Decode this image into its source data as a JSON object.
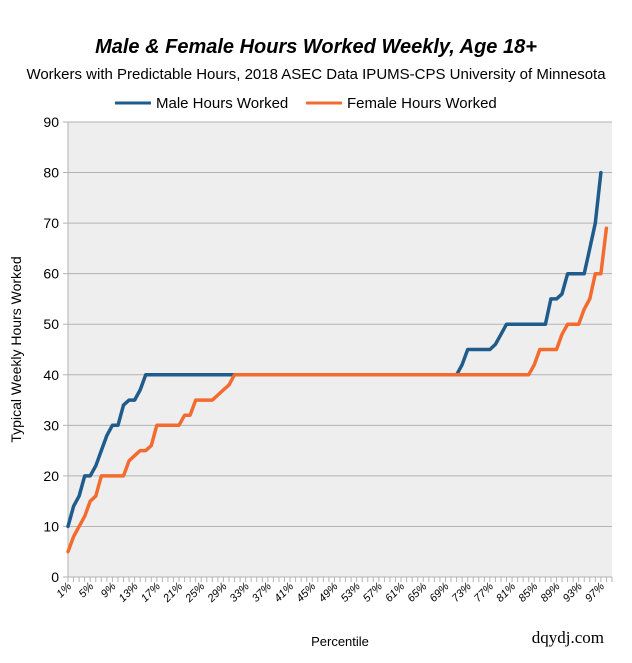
{
  "chart_data": {
    "type": "line",
    "title": "Male & Female Hours Worked Weekly, Age 18+",
    "subtitle": "Workers with Predictable Hours, 2018 ASEC Data IPUMS-CPS University of Minnesota",
    "xlabel": "Percentile",
    "ylabel": "Typical Weekly Hours Worked",
    "ylim": [
      0,
      90
    ],
    "yticks": [
      0,
      10,
      20,
      30,
      40,
      50,
      60,
      70,
      80,
      90
    ],
    "x_tick_labels": [
      "1%",
      "5%",
      "9%",
      "13%",
      "17%",
      "21%",
      "25%",
      "29%",
      "33%",
      "37%",
      "41%",
      "45%",
      "49%",
      "53%",
      "57%",
      "61%",
      "65%",
      "69%",
      "73%",
      "77%",
      "81%",
      "85%",
      "89%",
      "93%",
      "97%"
    ],
    "xlim": [
      1,
      99
    ],
    "grid": true,
    "legend_position": "top",
    "series": [
      {
        "name": "Male Hours Worked",
        "color": "#1f5c8b",
        "points": [
          [
            1,
            10
          ],
          [
            2,
            14
          ],
          [
            3,
            16
          ],
          [
            4,
            20
          ],
          [
            5,
            20
          ],
          [
            6,
            22
          ],
          [
            7,
            25
          ],
          [
            8,
            28
          ],
          [
            9,
            30
          ],
          [
            10,
            30
          ],
          [
            11,
            34
          ],
          [
            12,
            35
          ],
          [
            13,
            35
          ],
          [
            14,
            37
          ],
          [
            15,
            40
          ],
          [
            16,
            40
          ],
          [
            20,
            40
          ],
          [
            30,
            40
          ],
          [
            40,
            40
          ],
          [
            50,
            40
          ],
          [
            60,
            40
          ],
          [
            71,
            40
          ],
          [
            72,
            42
          ],
          [
            73,
            45
          ],
          [
            74,
            45
          ],
          [
            76,
            45
          ],
          [
            77,
            45
          ],
          [
            78,
            46
          ],
          [
            79,
            48
          ],
          [
            80,
            50
          ],
          [
            81,
            50
          ],
          [
            86,
            50
          ],
          [
            87,
            50
          ],
          [
            88,
            55
          ],
          [
            89,
            55
          ],
          [
            90,
            56
          ],
          [
            91,
            60
          ],
          [
            92,
            60
          ],
          [
            94,
            60
          ],
          [
            95,
            65
          ],
          [
            96,
            70
          ],
          [
            97,
            80
          ]
        ]
      },
      {
        "name": "Female Hours Worked",
        "color": "#f26c30",
        "points": [
          [
            1,
            5
          ],
          [
            2,
            8
          ],
          [
            3,
            10
          ],
          [
            4,
            12
          ],
          [
            5,
            15
          ],
          [
            6,
            16
          ],
          [
            7,
            20
          ],
          [
            8,
            20
          ],
          [
            10,
            20
          ],
          [
            11,
            20
          ],
          [
            12,
            23
          ],
          [
            13,
            24
          ],
          [
            14,
            25
          ],
          [
            15,
            25
          ],
          [
            16,
            26
          ],
          [
            17,
            30
          ],
          [
            18,
            30
          ],
          [
            20,
            30
          ],
          [
            21,
            30
          ],
          [
            22,
            32
          ],
          [
            23,
            32
          ],
          [
            24,
            35
          ],
          [
            25,
            35
          ],
          [
            26,
            35
          ],
          [
            27,
            35
          ],
          [
            28,
            36
          ],
          [
            29,
            37
          ],
          [
            30,
            38
          ],
          [
            31,
            40
          ],
          [
            40,
            40
          ],
          [
            50,
            40
          ],
          [
            60,
            40
          ],
          [
            70,
            40
          ],
          [
            80,
            40
          ],
          [
            84,
            40
          ],
          [
            85,
            42
          ],
          [
            86,
            45
          ],
          [
            87,
            45
          ],
          [
            88,
            45
          ],
          [
            89,
            45
          ],
          [
            90,
            48
          ],
          [
            91,
            50
          ],
          [
            92,
            50
          ],
          [
            93,
            50
          ],
          [
            94,
            53
          ],
          [
            95,
            55
          ],
          [
            96,
            60
          ],
          [
            97,
            60
          ],
          [
            98,
            69
          ]
        ]
      }
    ]
  },
  "watermark": "dqydj.com"
}
